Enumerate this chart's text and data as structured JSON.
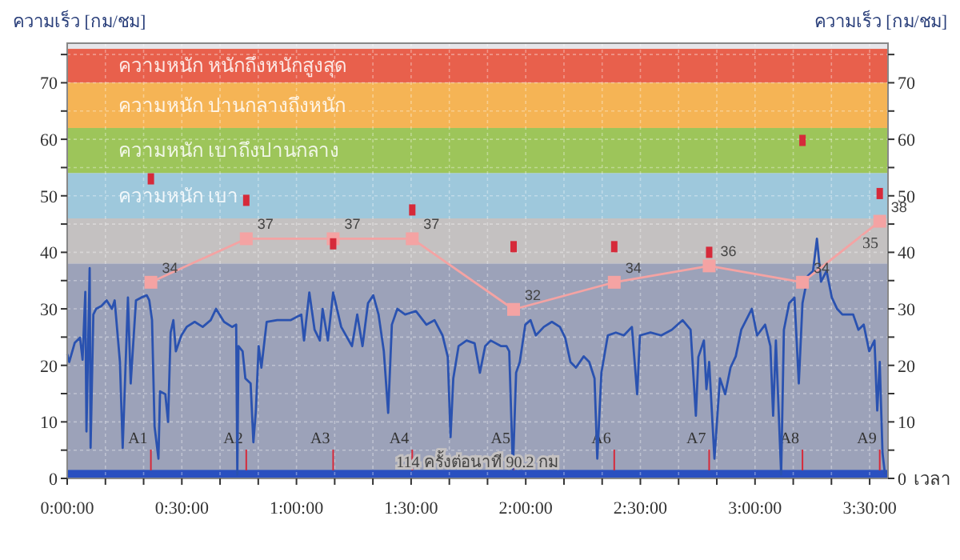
{
  "chart_data": {
    "type": "line",
    "xlabel": "เวลา",
    "ylabel": "ความเร็ว [กม/ชม]",
    "y2label": "ความเร็ว [กม/ชม]",
    "xlim": [
      0,
      3.58
    ],
    "xticks": [
      {
        "value": 0,
        "label": "0:00:00"
      },
      {
        "value": 0.1667,
        "label": null
      },
      {
        "value": 0.3333,
        "label": null
      },
      {
        "value": 0.5,
        "label": "0:30:00"
      },
      {
        "value": 0.6667,
        "label": null
      },
      {
        "value": 0.8333,
        "label": null
      },
      {
        "value": 1,
        "label": "1:00:00"
      },
      {
        "value": 1.1667,
        "label": null
      },
      {
        "value": 1.3333,
        "label": null
      },
      {
        "value": 1.5,
        "label": "1:30:00"
      },
      {
        "value": 1.6667,
        "label": null
      },
      {
        "value": 1.8333,
        "label": null
      },
      {
        "value": 2,
        "label": "2:00:00"
      },
      {
        "value": 2.1667,
        "label": null
      },
      {
        "value": 2.3333,
        "label": null
      },
      {
        "value": 2.5,
        "label": "2:30:00"
      },
      {
        "value": 2.6667,
        "label": null
      },
      {
        "value": 2.8333,
        "label": null
      },
      {
        "value": 3,
        "label": "3:00:00"
      },
      {
        "value": 3.1667,
        "label": null
      },
      {
        "value": 3.3333,
        "label": null
      },
      {
        "value": 3.5,
        "label": "3:30:00"
      }
    ],
    "ylim": [
      0,
      77
    ],
    "yticks": [
      0,
      {
        "value": 5,
        "label": null
      },
      10,
      {
        "value": 15,
        "label": null
      },
      20,
      {
        "value": 25,
        "label": null
      },
      30,
      {
        "value": 35,
        "label": null
      },
      40,
      {
        "value": 45,
        "label": null
      },
      50,
      {
        "value": 55,
        "label": null
      },
      60,
      {
        "value": 65,
        "label": null
      },
      70,
      {
        "value": 75,
        "label": null
      }
    ],
    "y2lim": [
      0,
      77
    ],
    "y2ticks": [
      0,
      {
        "value": 5,
        "label": null
      },
      10,
      {
        "value": 15,
        "label": null
      },
      20,
      {
        "value": 25,
        "label": null
      },
      30,
      {
        "value": 35,
        "label": null
      },
      40,
      {
        "value": 45,
        "label": null
      },
      50,
      {
        "value": 55,
        "label": null
      },
      60,
      {
        "value": 65,
        "label": null
      },
      70,
      {
        "value": 75,
        "label": null
      }
    ],
    "grid": true,
    "bands": [
      {
        "axis": "y",
        "from": 70,
        "to": 76,
        "label": "ความหนัก หนักถึงหนักสูงสุด",
        "color": "#e8604c"
      },
      {
        "axis": "y",
        "from": 62,
        "to": 70,
        "label": "ความหนัก ปานกลางถึงหนัก",
        "color": "#f5b455"
      },
      {
        "axis": "y",
        "from": 54,
        "to": 62,
        "label": "ความหนัก เบาถึงปานกลาง",
        "color": "#9dc55a"
      },
      {
        "axis": "y",
        "from": 46,
        "to": 54,
        "label": "ความหนัก เบา",
        "color": "#9ec8dc"
      },
      {
        "axis": "y",
        "from": 38,
        "to": 46,
        "color": "#c4c1c1"
      },
      {
        "axis": "y",
        "from": 0,
        "to": 38,
        "color": "#9ca2b9"
      },
      {
        "axis": "y",
        "from": 0,
        "to": 1.5,
        "color": "#2a50c0"
      }
    ],
    "series": [
      {
        "color": "#2a52b0",
        "marker": "none",
        "x": [
          0.0,
          0.009,
          0.033,
          0.056,
          0.067,
          0.079,
          0.084,
          0.098,
          0.102,
          0.114,
          0.126,
          0.149,
          0.172,
          0.195,
          0.207,
          0.23,
          0.242,
          0.265,
          0.277,
          0.3,
          0.323,
          0.347,
          0.358,
          0.37,
          0.381,
          0.398,
          0.405,
          0.428,
          0.44,
          0.451,
          0.463,
          0.474,
          0.498,
          0.521,
          0.556,
          0.591,
          0.626,
          0.649,
          0.684,
          0.719,
          0.737,
          0.742,
          0.747,
          0.765,
          0.777,
          0.8,
          0.812,
          0.823,
          0.835,
          0.847,
          0.87,
          0.916,
          0.974,
          1.021,
          1.033,
          1.056,
          1.079,
          1.102,
          1.114,
          1.137,
          1.16,
          1.195,
          1.242,
          1.265,
          1.288,
          1.312,
          1.335,
          1.358,
          1.381,
          1.4,
          1.416,
          1.44,
          1.474,
          1.521,
          1.567,
          1.602,
          1.637,
          1.66,
          1.672,
          1.684,
          1.707,
          1.742,
          1.777,
          1.8,
          1.823,
          1.847,
          1.893,
          1.916,
          1.928,
          1.944,
          1.958,
          1.974,
          1.998,
          2.021,
          2.044,
          2.079,
          2.114,
          2.149,
          2.172,
          2.195,
          2.219,
          2.253,
          2.277,
          2.3,
          2.312,
          2.33,
          2.358,
          2.393,
          2.428,
          2.463,
          2.486,
          2.498,
          2.544,
          2.591,
          2.637,
          2.684,
          2.719,
          2.742,
          2.753,
          2.777,
          2.788,
          2.8,
          2.823,
          2.847,
          2.87,
          2.893,
          2.916,
          2.94,
          2.986,
          3.009,
          3.044,
          3.067,
          3.079,
          3.091,
          3.114,
          3.126,
          3.149,
          3.172,
          3.191,
          3.207,
          3.23,
          3.253,
          3.27,
          3.288,
          3.312,
          3.335,
          3.358,
          3.381,
          3.428,
          3.451,
          3.474,
          3.498,
          3.521,
          3.533,
          3.544,
          3.556,
          3.567
        ],
        "values": [
          22,
          20.6,
          24,
          24.9,
          21,
          33,
          8.3,
          37.2,
          5.4,
          29,
          30,
          30.5,
          31.5,
          30,
          31.5,
          20.6,
          5.4,
          32,
          16.8,
          31.5,
          32,
          32.4,
          31.5,
          28,
          9.2,
          3.5,
          15.4,
          14.9,
          10,
          25.8,
          28,
          22.5,
          25.3,
          26.8,
          27.7,
          26.8,
          28,
          30,
          27.7,
          26.8,
          27.2,
          0.7,
          23.4,
          22.5,
          17.7,
          16.8,
          6.4,
          12,
          23.4,
          19.6,
          27.7,
          28,
          28,
          29,
          24.4,
          32.9,
          26.3,
          24.4,
          30,
          24.4,
          32.9,
          26.8,
          23.4,
          29,
          23.4,
          31,
          32.4,
          29,
          22.5,
          11.6,
          27.2,
          30,
          29,
          29.6,
          27.2,
          28,
          25.3,
          21.5,
          7.3,
          17.7,
          23.4,
          24.4,
          23.9,
          18.7,
          23.4,
          24.4,
          23.4,
          23.4,
          22.5,
          1.6,
          18.7,
          20.6,
          27.2,
          28,
          25.3,
          26.8,
          27.7,
          26.8,
          24.9,
          20.6,
          19.6,
          21.6,
          20.6,
          17.7,
          3.5,
          18.7,
          25.3,
          25.8,
          25.3,
          26.8,
          14.9,
          25.3,
          25.8,
          25.3,
          26.3,
          28,
          26.3,
          11.1,
          21.5,
          24.4,
          15.8,
          20.6,
          3.5,
          17.7,
          14.9,
          19.6,
          21.6,
          26.3,
          30,
          25.3,
          27.2,
          23.4,
          11.1,
          24.4,
          0.7,
          26.3,
          31,
          32,
          16.8,
          31,
          35.8,
          36.7,
          42.4,
          34.8,
          36.7,
          32,
          30,
          29,
          29,
          26.3,
          27.2,
          22.5,
          24.4,
          12,
          20.6,
          4.5,
          0.7
        ]
      },
      {
        "color": "#f4a3a3",
        "marker": "square",
        "x": [
          0.365,
          0.781,
          1.16,
          1.505,
          1.947,
          2.386,
          2.8,
          3.207,
          3.544
        ],
        "values": [
          34.7,
          42.4,
          42.4,
          42.4,
          29.9,
          34.7,
          37.6,
          34.7,
          45.5
        ]
      },
      {
        "type": "scatter",
        "color": "#d62a3a",
        "marker": "square",
        "x": [
          0.365,
          0.781,
          1.16,
          1.505,
          1.947,
          2.386,
          2.8,
          3.207,
          3.544
        ],
        "values": [
          53,
          49.2,
          41.5,
          47.5,
          41,
          41,
          40,
          59.8,
          50.4
        ]
      }
    ],
    "ref_lines": [
      {
        "axis": "x",
        "value": 0.365,
        "label": "A1",
        "color": "#d62a3a"
      },
      {
        "axis": "x",
        "value": 0.781,
        "label": "A2",
        "color": "#d62a3a"
      },
      {
        "axis": "x",
        "value": 1.16,
        "label": "A3",
        "color": "#d62a3a"
      },
      {
        "axis": "x",
        "value": 1.505,
        "label": "A4",
        "color": "#d62a3a"
      },
      {
        "axis": "x",
        "value": 1.947,
        "label": "A5",
        "color": "#d62a3a"
      },
      {
        "axis": "x",
        "value": 2.386,
        "label": "A6",
        "color": "#d62a3a"
      },
      {
        "axis": "x",
        "value": 2.8,
        "label": "A7",
        "color": "#d62a3a"
      },
      {
        "axis": "x",
        "value": 3.207,
        "label": "A8",
        "color": "#d62a3a"
      },
      {
        "axis": "x",
        "value": 3.544,
        "label": "A9",
        "color": "#d62a3a"
      }
    ],
    "annotations": [
      {
        "text": "34",
        "x": 0.365,
        "y": 34.7
      },
      {
        "text": "37",
        "x": 0.781,
        "y": 42.4
      },
      {
        "text": "37",
        "x": 1.16,
        "y": 42.4
      },
      {
        "text": "37",
        "x": 1.505,
        "y": 42.4
      },
      {
        "text": "32",
        "x": 1.947,
        "y": 29.9
      },
      {
        "text": "34",
        "x": 2.386,
        "y": 34.7
      },
      {
        "text": "36",
        "x": 2.8,
        "y": 37.6
      },
      {
        "text": "34",
        "x": 3.207,
        "y": 34.7
      },
      {
        "text": "38",
        "x": 3.544,
        "y": 45.5
      },
      "35",
      "114 ครั้งต่อนาที 90.2 กม"
    ]
  }
}
